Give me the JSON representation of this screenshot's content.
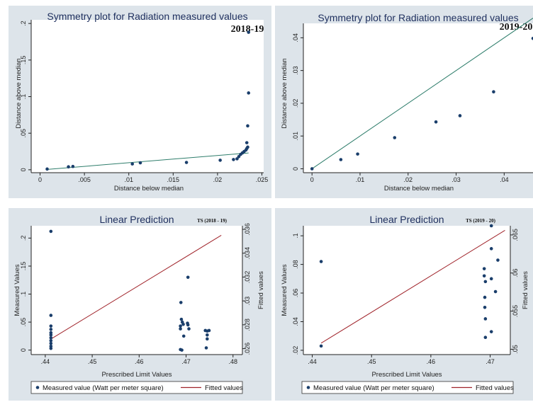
{
  "colors": {
    "background": "#dde4ea",
    "plot_bg": "#ffffff",
    "marker": "#1a3e6b",
    "fit_line_sym": "#2e7d6b",
    "fit_line_pred": "#a0232a",
    "title": "#1e2f5e"
  },
  "chart_data": [
    {
      "id": "sym1819",
      "type": "scatter",
      "title": "Symmetry plot for Radiation measured values",
      "tag": "2018-19",
      "xlabel": "Distance below median",
      "ylabel": "Distance above median",
      "xlim": [
        -0.001,
        0.0252
      ],
      "ylim": [
        -0.004,
        0.205
      ],
      "xticks": [
        {
          "v": 0,
          "l": "0"
        },
        {
          "v": 0.005,
          "l": ".005"
        },
        {
          "v": 0.01,
          "l": ".01"
        },
        {
          "v": 0.015,
          "l": ".015"
        },
        {
          "v": 0.02,
          "l": ".02"
        },
        {
          "v": 0.025,
          "l": ".025"
        }
      ],
      "yticks": [
        {
          "v": 0,
          "l": "0"
        },
        {
          "v": 0.05,
          "l": ".05"
        },
        {
          "v": 0.1,
          "l": ".1"
        },
        {
          "v": 0.15,
          "l": ".15"
        },
        {
          "v": 0.2,
          "l": ".2"
        }
      ],
      "points": [
        [
          0.0008,
          0.001
        ],
        [
          0.0032,
          0.004
        ],
        [
          0.0037,
          0.0045
        ],
        [
          0.0104,
          0.008
        ],
        [
          0.0113,
          0.0095
        ],
        [
          0.0165,
          0.01
        ],
        [
          0.0203,
          0.013
        ],
        [
          0.0218,
          0.014
        ],
        [
          0.0222,
          0.015
        ],
        [
          0.0224,
          0.018
        ],
        [
          0.0226,
          0.021
        ],
        [
          0.0228,
          0.023
        ],
        [
          0.023,
          0.025
        ],
        [
          0.0232,
          0.027
        ],
        [
          0.0233,
          0.029
        ],
        [
          0.0234,
          0.031
        ],
        [
          0.0233,
          0.037
        ],
        [
          0.0234,
          0.06
        ],
        [
          0.0235,
          0.105
        ],
        [
          0.0235,
          0.188
        ]
      ],
      "line": [
        [
          0.0008,
          0.0005
        ],
        [
          0.0235,
          0.023
        ]
      ]
    },
    {
      "id": "sym1920",
      "type": "scatter",
      "title": "Symmetry plot for Radiation measured values",
      "tag": "2019-20",
      "xlabel": "Distance below median",
      "ylabel": "Distance above median",
      "xlim": [
        -0.0018,
        0.046
      ],
      "ylim": [
        -0.0012,
        0.0444
      ],
      "xticks": [
        {
          "v": 0,
          "l": "0"
        },
        {
          "v": 0.01,
          "l": ".01"
        },
        {
          "v": 0.02,
          "l": ".02"
        },
        {
          "v": 0.03,
          "l": ".03"
        },
        {
          "v": 0.04,
          "l": ".04"
        }
      ],
      "yticks": [
        {
          "v": 0,
          "l": "0"
        },
        {
          "v": 0.01,
          "l": ".01"
        },
        {
          "v": 0.02,
          "l": ".02"
        },
        {
          "v": 0.03,
          "l": ".03"
        },
        {
          "v": 0.04,
          "l": ".04"
        }
      ],
      "points": [
        [
          0,
          0
        ],
        [
          0.006,
          0.0028
        ],
        [
          0.0095,
          0.0045
        ],
        [
          0.0172,
          0.0095
        ],
        [
          0.0258,
          0.0143
        ],
        [
          0.0308,
          0.0162
        ],
        [
          0.0378,
          0.0235
        ],
        [
          0.046,
          0.0398
        ]
      ],
      "line": [
        [
          0,
          0
        ],
        [
          0.046,
          0.046
        ]
      ]
    },
    {
      "id": "pred1819",
      "type": "scatter",
      "title": "Linear Prediction",
      "tag": "TS (2018 - 19)",
      "xlabel": "Prescribed Limit Values",
      "ylabel": "Measured Values",
      "y2label": "Fitted values",
      "xlim": [
        0.437,
        0.482
      ],
      "ylim": [
        -0.008,
        0.222
      ],
      "y2lim": [
        0.0255,
        0.0363
      ],
      "xticks": [
        {
          "v": 0.44,
          "l": ".44"
        },
        {
          "v": 0.45,
          "l": ".45"
        },
        {
          "v": 0.46,
          "l": ".46"
        },
        {
          "v": 0.47,
          "l": ".47"
        },
        {
          "v": 0.48,
          "l": ".48"
        }
      ],
      "yticks": [
        {
          "v": 0,
          "l": "0"
        },
        {
          "v": 0.05,
          "l": ".05"
        },
        {
          "v": 0.1,
          "l": ".1"
        },
        {
          "v": 0.15,
          "l": ".15"
        },
        {
          "v": 0.2,
          "l": ".2"
        }
      ],
      "y2ticks": [
        {
          "v": 0.026,
          "l": ".026"
        },
        {
          "v": 0.028,
          "l": ".028"
        },
        {
          "v": 0.03,
          "l": ".03"
        },
        {
          "v": 0.032,
          "l": ".032"
        },
        {
          "v": 0.034,
          "l": ".034"
        },
        {
          "v": 0.036,
          "l": ".036"
        }
      ],
      "points": [
        [
          0.4412,
          0.212
        ],
        [
          0.4412,
          0.062
        ],
        [
          0.4412,
          0.043
        ],
        [
          0.4412,
          0.037
        ],
        [
          0.4412,
          0.031
        ],
        [
          0.4412,
          0.027
        ],
        [
          0.4412,
          0.022
        ],
        [
          0.4412,
          0.017
        ],
        [
          0.4412,
          0.012
        ],
        [
          0.4412,
          0.007
        ],
        [
          0.4412,
          0.003
        ],
        [
          0.4689,
          0.085
        ],
        [
          0.469,
          0.055
        ],
        [
          0.4692,
          0.05
        ],
        [
          0.4694,
          0.046
        ],
        [
          0.4688,
          0.043
        ],
        [
          0.4688,
          0.038
        ],
        [
          0.4695,
          0.025
        ],
        [
          0.4688,
          0.001
        ],
        [
          0.4691,
          0.0
        ],
        [
          0.4704,
          0.13
        ],
        [
          0.4703,
          0.048
        ],
        [
          0.4704,
          0.045
        ],
        [
          0.4706,
          0.038
        ],
        [
          0.4741,
          0.035
        ],
        [
          0.4745,
          0.034
        ],
        [
          0.4749,
          0.035
        ],
        [
          0.4745,
          0.027
        ],
        [
          0.4745,
          0.02
        ],
        [
          0.4743,
          0.004
        ]
      ],
      "line": [
        [
          0.4412,
          0.0268
        ],
        [
          0.4775,
          0.0355
        ]
      ]
    },
    {
      "id": "pred1920",
      "type": "scatter",
      "title": "Linear Prediction",
      "tag": "TS (2019 - 20)",
      "xlabel": "Prescribed Limit Values",
      "ylabel": "Measured Values",
      "y2label": "Fitted values",
      "xlim": [
        0.4385,
        0.4734
      ],
      "ylim": [
        0.017,
        0.107
      ],
      "y2lim": [
        0.0493,
        0.0662
      ],
      "xticks": [
        {
          "v": 0.44,
          "l": ".44"
        },
        {
          "v": 0.45,
          "l": ".45"
        },
        {
          "v": 0.46,
          "l": ".46"
        },
        {
          "v": 0.47,
          "l": ".47"
        }
      ],
      "yticks": [
        {
          "v": 0.02,
          "l": ".02"
        },
        {
          "v": 0.04,
          "l": ".04"
        },
        {
          "v": 0.06,
          "l": ".06"
        },
        {
          "v": 0.08,
          "l": ".08"
        },
        {
          "v": 0.1,
          "l": ".1"
        }
      ],
      "y2ticks": [
        {
          "v": 0.05,
          "l": ".05"
        },
        {
          "v": 0.055,
          "l": ".055"
        },
        {
          "v": 0.06,
          "l": ".06"
        },
        {
          "v": 0.065,
          "l": ".065"
        }
      ],
      "points": [
        [
          0.4415,
          0.082
        ],
        [
          0.4415,
          0.023
        ],
        [
          0.4702,
          0.107
        ],
        [
          0.4702,
          0.091
        ],
        [
          0.4713,
          0.083
        ],
        [
          0.469,
          0.077
        ],
        [
          0.469,
          0.072
        ],
        [
          0.4692,
          0.068
        ],
        [
          0.4702,
          0.07
        ],
        [
          0.4709,
          0.061
        ],
        [
          0.4691,
          0.057
        ],
        [
          0.4691,
          0.05
        ],
        [
          0.4692,
          0.042
        ],
        [
          0.4702,
          0.033
        ],
        [
          0.4692,
          0.029
        ]
      ],
      "line": [
        [
          0.4415,
          0.0508
        ],
        [
          0.4725,
          0.0656
        ]
      ]
    }
  ],
  "legend": {
    "marker_label": "Measured value (Watt per meter square)",
    "line_label": "Fitted values"
  }
}
